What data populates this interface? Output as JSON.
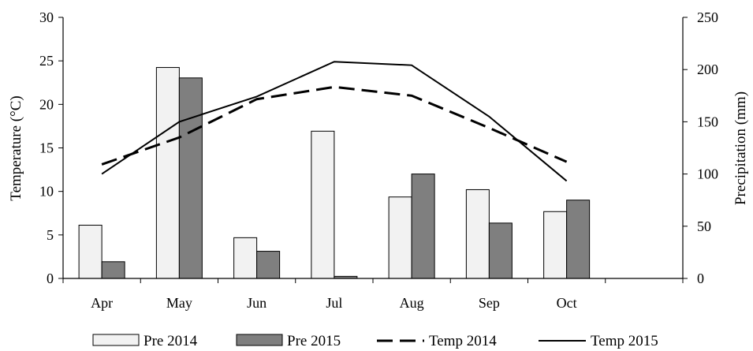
{
  "chart_data": {
    "type": "bar",
    "categories": [
      "Apr",
      "May",
      "Jun",
      "Jul",
      "Aug",
      "Sep",
      "Oct",
      ""
    ],
    "y_left": {
      "label": "Temperature (°C)",
      "min": 0,
      "max": 30,
      "ticks": [
        0,
        5,
        10,
        15,
        20,
        25,
        30
      ]
    },
    "y_right": {
      "label": "Precipitation (mm)",
      "min": 0,
      "max": 250,
      "ticks": [
        0,
        50,
        100,
        150,
        200,
        250
      ]
    },
    "grid": false,
    "legend_position": "bottom",
    "series": [
      {
        "name": "Pre 2014",
        "type": "bar",
        "axis": "right",
        "color": "#f2f2f2",
        "values": [
          51,
          202,
          39,
          141,
          78,
          85,
          64,
          null
        ]
      },
      {
        "name": "Pre 2015",
        "type": "bar",
        "axis": "right",
        "color": "#7f7f7f",
        "values": [
          16,
          192,
          26,
          2,
          100,
          53,
          75,
          null
        ]
      },
      {
        "name": "Temp 2014",
        "type": "line",
        "axis": "left",
        "style": "dashed",
        "color": "#000000",
        "values": [
          13.1,
          16.2,
          20.6,
          22.0,
          21.0,
          17.3,
          13.4,
          null
        ]
      },
      {
        "name": "Temp 2015",
        "type": "line",
        "axis": "left",
        "style": "solid",
        "color": "#000000",
        "values": [
          12.0,
          18.0,
          20.9,
          24.9,
          24.5,
          18.6,
          11.2,
          null
        ]
      }
    ]
  }
}
